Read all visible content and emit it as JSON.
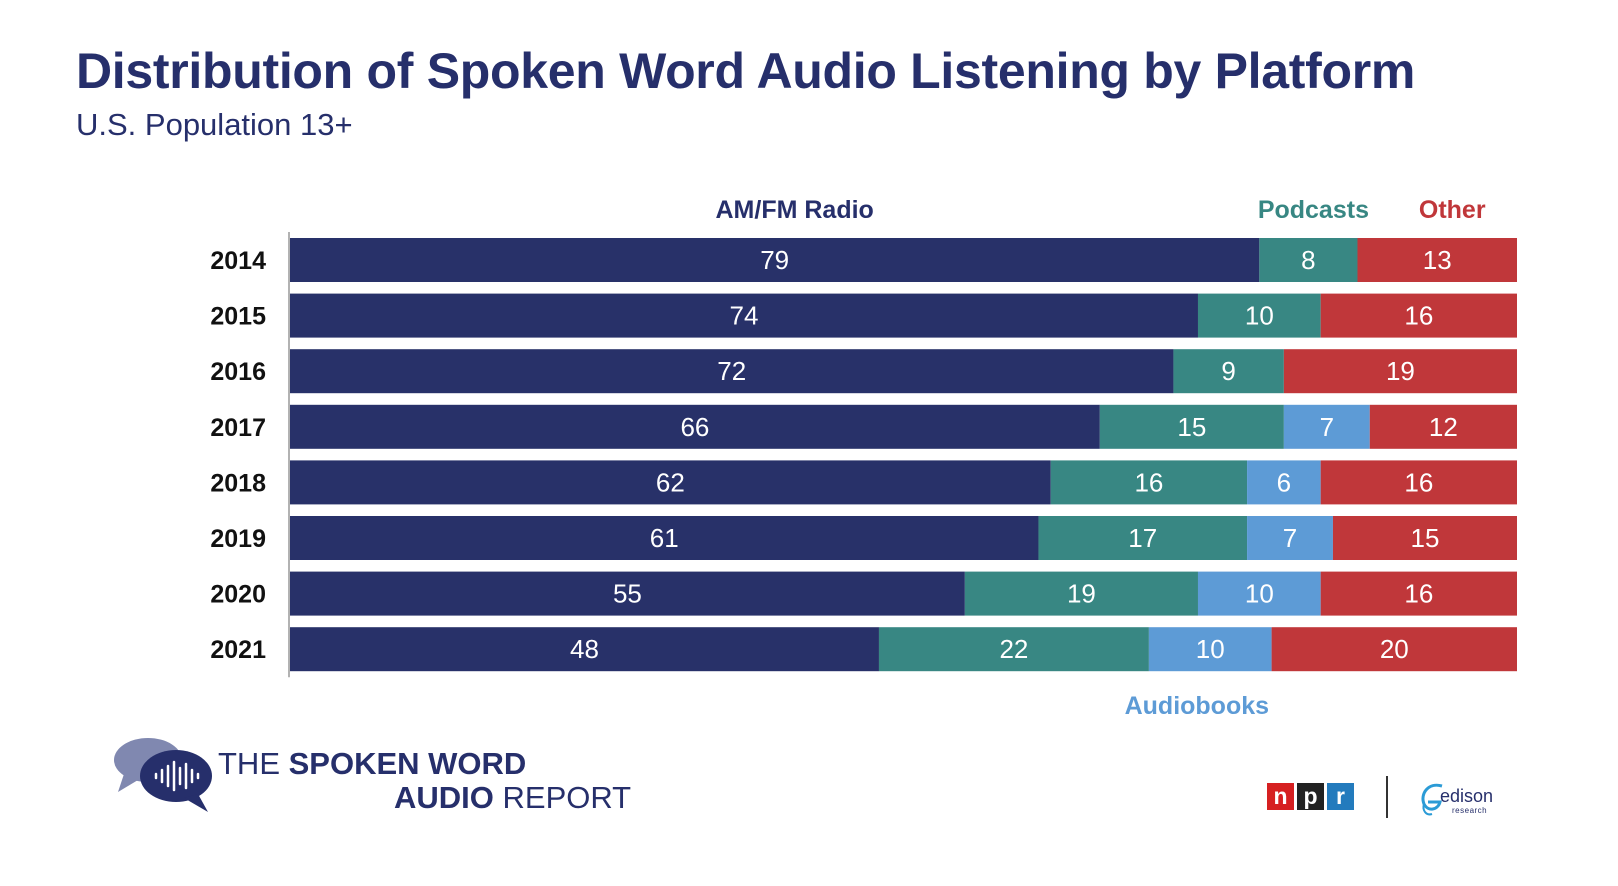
{
  "header": {
    "title": "Distribution of Spoken Word Audio Listening by Platform",
    "subtitle": "U.S. Population 13+"
  },
  "chart_data": {
    "type": "bar",
    "orientation": "horizontal-stacked",
    "categories": [
      "2014",
      "2015",
      "2016",
      "2017",
      "2018",
      "2019",
      "2020",
      "2021"
    ],
    "series": [
      {
        "name": "AM/FM Radio",
        "color": "#283169",
        "values": [
          79,
          74,
          72,
          66,
          62,
          61,
          55,
          48
        ]
      },
      {
        "name": "Podcasts",
        "color": "#388783",
        "values": [
          8,
          10,
          9,
          15,
          16,
          17,
          19,
          22
        ]
      },
      {
        "name": "Audiobooks",
        "color": "#5d9bd6",
        "values": [
          0,
          0,
          0,
          7,
          6,
          7,
          10,
          10
        ]
      },
      {
        "name": "Other",
        "color": "#c0373a",
        "values": [
          13,
          16,
          19,
          12,
          16,
          15,
          16,
          20
        ]
      }
    ],
    "legend_label_colors": {
      "AM/FM Radio": "#262f6b",
      "Podcasts": "#388783",
      "Audiobooks": "#5d9bd6",
      "Other": "#c0373a"
    },
    "xlim": [
      0,
      100
    ],
    "grid": false
  },
  "footer": {
    "brand_line1_light": "THE ",
    "brand_line1_bold": "SPOKEN WORD",
    "brand_line2_bold": "AUDIO",
    "brand_line2_light": " REPORT",
    "npr_letters": [
      "n",
      "p",
      "r"
    ],
    "npr_colors": [
      "#d62021",
      "#222222",
      "#237bbd"
    ],
    "edison_word": "edison",
    "edison_sub": "research"
  }
}
